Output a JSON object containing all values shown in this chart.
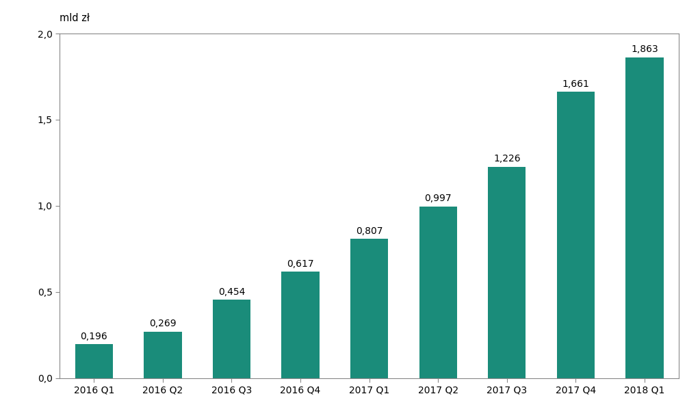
{
  "categories": [
    "2016 Q1",
    "2016 Q2",
    "2016 Q3",
    "2016 Q4",
    "2017 Q1",
    "2017 Q2",
    "2017 Q3",
    "2017 Q4",
    "2018 Q1"
  ],
  "values": [
    0.196,
    0.269,
    0.454,
    0.617,
    0.807,
    0.997,
    1.226,
    1.661,
    1.863
  ],
  "labels": [
    "0,196",
    "0,269",
    "0,454",
    "0,617",
    "0,807",
    "0,997",
    "1,226",
    "1,661",
    "1,863"
  ],
  "bar_color": "#1a8c7a",
  "ylabel": "mld zł",
  "ylim": [
    0,
    2.0
  ],
  "yticks": [
    0.0,
    0.5,
    1.0,
    1.5,
    2.0
  ],
  "ytick_labels": [
    "0,0",
    "0,5",
    "1,0",
    "1,5",
    "2,0"
  ],
  "background_color": "#ffffff",
  "label_fontsize": 10,
  "tick_fontsize": 10,
  "ylabel_fontsize": 10.5,
  "bar_width": 0.55
}
